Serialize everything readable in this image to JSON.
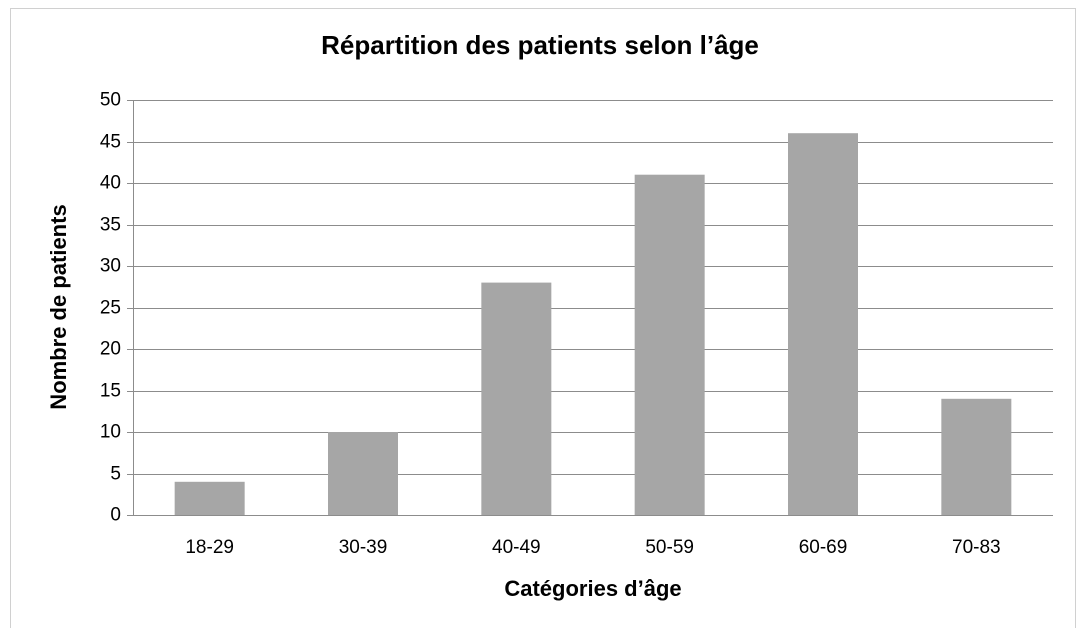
{
  "chart_data": {
    "type": "bar",
    "title": "Répartition des patients selon l’âge",
    "x_label": "Catégories d’âge",
    "y_label": "Nombre de patients",
    "categories": [
      "18-29",
      "30-39",
      "40-49",
      "50-59",
      "60-69",
      "70-83"
    ],
    "values": [
      4,
      10,
      28,
      41,
      46,
      14
    ],
    "color": "#a6a6a6",
    "ylim": [
      0,
      50
    ],
    "yticks": [
      0,
      5,
      10,
      15,
      20,
      25,
      30,
      35,
      40,
      45,
      50
    ],
    "grid": true
  }
}
